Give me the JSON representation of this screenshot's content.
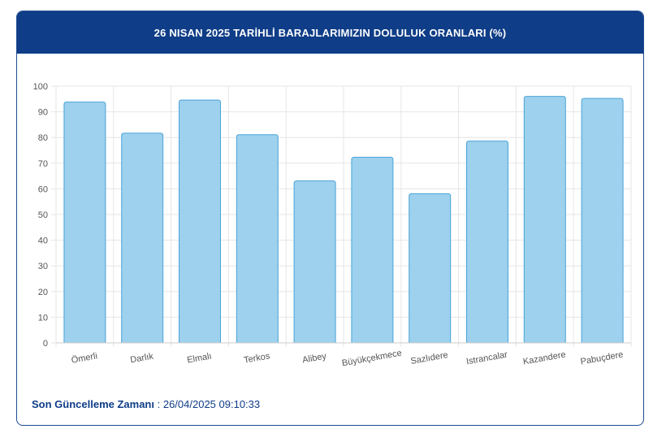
{
  "header": {
    "title": "26 NISAN 2025 TARİHLİ BARAJLARIMIZIN DOLULUK ORANLARI (%)"
  },
  "footer": {
    "label": "Son Güncelleme Zamanı",
    "separator": " : ",
    "value": "26/04/2025 09:10:33"
  },
  "colors": {
    "header_bg": "#0f3d87",
    "bar_fill": "#9dd1ee",
    "bar_stroke": "#4aa3d6"
  },
  "chart_data": {
    "type": "bar",
    "categories": [
      "Ömerli",
      "Darlık",
      "Elmalı",
      "Terkos",
      "Alibey",
      "Büyükçekmece",
      "Sazlıdere",
      "Istrancalar",
      "Kazandere",
      "Pabuçdere"
    ],
    "values": [
      93.8,
      81.7,
      94.6,
      81.1,
      63.1,
      72.3,
      58.1,
      78.6,
      96.0,
      95.2
    ],
    "ylim": [
      0,
      100
    ],
    "yticks": [
      0,
      10,
      20,
      30,
      40,
      50,
      60,
      70,
      80,
      90,
      100
    ],
    "grid": true,
    "legend": "none",
    "xlabel": "",
    "ylabel": "",
    "title": ""
  }
}
